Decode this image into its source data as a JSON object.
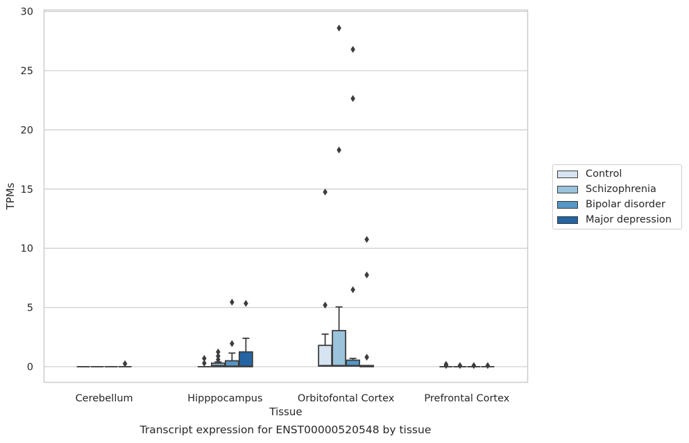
{
  "chart_data": {
    "type": "box",
    "title": "",
    "caption": "Transcript expression for ENST00000520548 by tissue",
    "xlabel": "Tissue",
    "ylabel": "TPMs",
    "ylim": [
      -1.35,
      30.15
    ],
    "yticks": [
      0,
      5,
      10,
      15,
      20,
      25,
      30
    ],
    "grid": "horizontal",
    "legend_position": "right",
    "categories": [
      "Cerebellum",
      "Hipppocampus",
      "Orbitofontal Cortex",
      "Prefrontal Cortex"
    ],
    "series": [
      {
        "name": "Control",
        "color": "#d6e3f1",
        "boxes": [
          {
            "q1": 0,
            "median": 0,
            "q3": 0,
            "whisker_low": 0,
            "whisker_high": 0,
            "outliers": []
          },
          {
            "q1": 0,
            "median": 0,
            "q3": 0,
            "whisker_low": 0,
            "whisker_high": 0,
            "outliers": [
              0.3,
              0.7
            ]
          },
          {
            "q1": 0.05,
            "median": 0.1,
            "q3": 1.8,
            "whisker_low": 0,
            "whisker_high": 2.75,
            "outliers": [
              5.2,
              14.75
            ]
          },
          {
            "q1": 0,
            "median": 0,
            "q3": 0,
            "whisker_low": 0,
            "whisker_high": 0,
            "outliers": [
              0.1,
              0.2
            ]
          }
        ]
      },
      {
        "name": "Schizophrenia",
        "color": "#9ac3dc",
        "boxes": [
          {
            "q1": 0,
            "median": 0,
            "q3": 0,
            "whisker_low": 0,
            "whisker_high": 0,
            "outliers": []
          },
          {
            "q1": 0,
            "median": 0.1,
            "q3": 0.3,
            "whisker_low": 0,
            "whisker_high": 0.4,
            "outliers": [
              0.6,
              0.9,
              1.25
            ]
          },
          {
            "q1": 0.05,
            "median": 0.1,
            "q3": 3.05,
            "whisker_low": 0,
            "whisker_high": 5.05,
            "outliers": [
              18.3,
              28.6
            ]
          },
          {
            "q1": 0,
            "median": 0,
            "q3": 0,
            "whisker_low": 0,
            "whisker_high": 0,
            "outliers": [
              0.1
            ]
          }
        ]
      },
      {
        "name": "Bipolar disorder",
        "color": "#5597c6",
        "boxes": [
          {
            "q1": 0,
            "median": 0,
            "q3": 0,
            "whisker_low": 0,
            "whisker_high": 0,
            "outliers": []
          },
          {
            "q1": 0,
            "median": 0.05,
            "q3": 0.5,
            "whisker_low": 0,
            "whisker_high": 1.15,
            "outliers": [
              1.95,
              5.45
            ]
          },
          {
            "q1": 0.05,
            "median": 0.1,
            "q3": 0.55,
            "whisker_low": 0,
            "whisker_high": 0.7,
            "outliers": [
              6.5,
              22.65,
              26.8
            ]
          },
          {
            "q1": 0,
            "median": 0,
            "q3": 0,
            "whisker_low": 0,
            "whisker_high": 0,
            "outliers": [
              0.1
            ]
          }
        ]
      },
      {
        "name": "Major depression",
        "color": "#2565a3",
        "boxes": [
          {
            "q1": 0,
            "median": 0,
            "q3": 0,
            "whisker_low": 0,
            "whisker_high": 0,
            "outliers": [
              0.25
            ]
          },
          {
            "q1": 0,
            "median": 0.05,
            "q3": 1.25,
            "whisker_low": 0,
            "whisker_high": 2.4,
            "outliers": [
              5.35
            ]
          },
          {
            "q1": 0,
            "median": 0.05,
            "q3": 0.1,
            "whisker_low": 0,
            "whisker_high": 0.1,
            "outliers": [
              0.8,
              7.75,
              10.75
            ]
          },
          {
            "q1": 0,
            "median": 0,
            "q3": 0,
            "whisker_low": 0,
            "whisker_high": 0,
            "outliers": [
              0.1
            ]
          }
        ]
      }
    ]
  }
}
